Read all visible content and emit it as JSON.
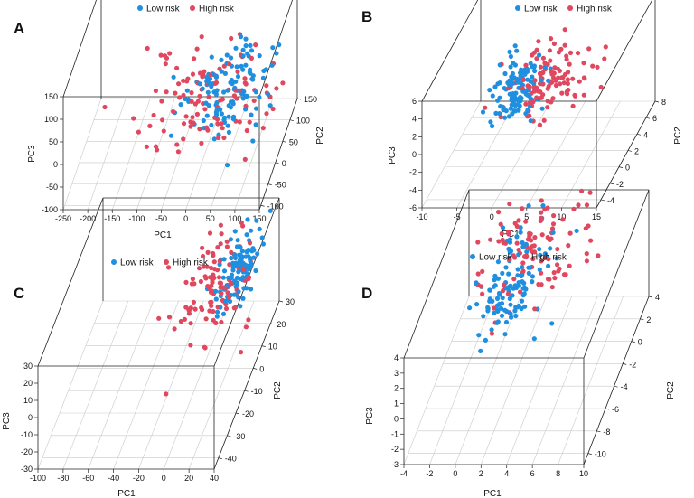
{
  "figure": {
    "legend": {
      "low": "Low risk",
      "high": "High risk"
    },
    "colors": {
      "low": "#1f8fe0",
      "high": "#e0485f"
    }
  },
  "chart_data": [
    {
      "type": "scatter",
      "panel": "A",
      "title": "",
      "xlabel": "PC1",
      "ylabel": "PC2",
      "zlabel": "PC3",
      "x_ticks": [
        "-250",
        "-200",
        "-150",
        "-100",
        "-50",
        "0",
        "50",
        "100",
        "150"
      ],
      "y_ticks": [
        "-100",
        "-50",
        "0",
        "50",
        "100",
        "150"
      ],
      "z_ticks": [
        "-100",
        "-50",
        "0",
        "50",
        "100",
        "150"
      ],
      "xlim": [
        -250,
        150
      ],
      "ylim": [
        -110,
        150
      ],
      "zlim": [
        -100,
        150
      ],
      "series": [
        {
          "name": "Low risk",
          "center": [
            60,
            10,
            50
          ],
          "spread": [
            45,
            50,
            25
          ],
          "count": 120
        },
        {
          "name": "High risk",
          "center": [
            10,
            0,
            40
          ],
          "spread": [
            70,
            55,
            35
          ],
          "count": 110
        }
      ]
    },
    {
      "type": "scatter",
      "panel": "B",
      "title": "",
      "xlabel": "PC1",
      "ylabel": "PC2",
      "zlabel": "PC3",
      "x_ticks": [
        "-10",
        "-5",
        "0",
        "5",
        "10",
        "15"
      ],
      "y_ticks": [
        "-4",
        "-2",
        "0",
        "2",
        "4",
        "6",
        "8"
      ],
      "z_ticks": [
        "-6",
        "-4",
        "-2",
        "0",
        "2",
        "4",
        "6"
      ],
      "xlim": [
        -10,
        15
      ],
      "ylim": [
        -5,
        8
      ],
      "zlim": [
        -6,
        6
      ],
      "series": [
        {
          "name": "Low risk",
          "center": [
            0,
            1,
            2
          ],
          "spread": [
            1.6,
            1.5,
            1.2
          ],
          "count": 120
        },
        {
          "name": "High risk",
          "center": [
            4,
            2,
            2
          ],
          "spread": [
            3,
            2,
            1.5
          ],
          "count": 110
        }
      ]
    },
    {
      "type": "scatter",
      "panel": "C",
      "title": "",
      "xlabel": "PC1",
      "ylabel": "PC2",
      "zlabel": "PC3",
      "x_ticks": [
        "-100",
        "-80",
        "-60",
        "-40",
        "-20",
        "0",
        "20",
        "40"
      ],
      "y_ticks": [
        "-40",
        "-30",
        "-20",
        "-10",
        "0",
        "10",
        "20",
        "30"
      ],
      "z_ticks": [
        "-30",
        "-20",
        "-10",
        "0",
        "10",
        "20",
        "30"
      ],
      "xlim": [
        -100,
        40
      ],
      "ylim": [
        -45,
        30
      ],
      "zlim": [
        -30,
        30
      ],
      "series": [
        {
          "name": "Low risk",
          "center": [
            25,
            5,
            22
          ],
          "spread": [
            8,
            8,
            7
          ],
          "count": 120
        },
        {
          "name": "High risk",
          "center": [
            10,
            0,
            18
          ],
          "spread": [
            15,
            12,
            9
          ],
          "count": 110
        }
      ]
    },
    {
      "type": "scatter",
      "panel": "D",
      "title": "",
      "xlabel": "PC1",
      "ylabel": "PC2",
      "zlabel": "PC3",
      "x_ticks": [
        "-4",
        "-2",
        "0",
        "2",
        "4",
        "6",
        "8",
        "10"
      ],
      "y_ticks": [
        "-10",
        "-8",
        "-6",
        "-4",
        "-2",
        "0",
        "2",
        "4"
      ],
      "z_ticks": [
        "-3",
        "-2",
        "-1",
        "0",
        "1",
        "2",
        "3",
        "4"
      ],
      "xlim": [
        -4,
        10
      ],
      "ylim": [
        -11,
        4
      ],
      "zlim": [
        -3,
        4
      ],
      "series": [
        {
          "name": "Low risk",
          "center": [
            1,
            -1,
            1.5
          ],
          "spread": [
            1.3,
            2,
            1
          ],
          "count": 120
        },
        {
          "name": "High risk",
          "center": [
            2.5,
            0,
            3
          ],
          "spread": [
            2,
            2.2,
            1
          ],
          "count": 110
        }
      ]
    }
  ]
}
